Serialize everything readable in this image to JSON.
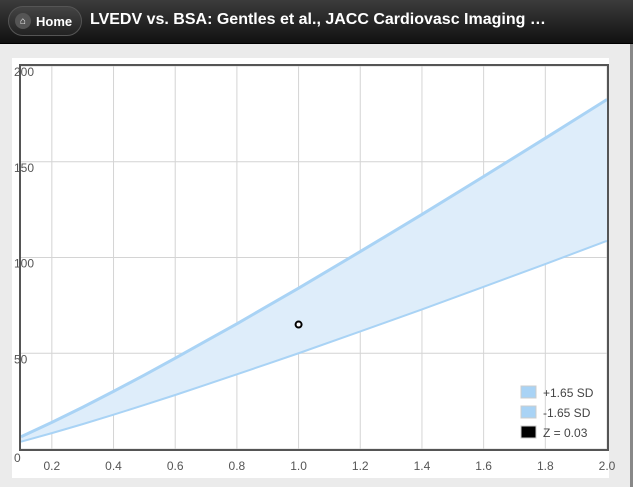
{
  "header": {
    "home_label": "Home",
    "title": "LVEDV vs. BSA: Gentles et al., JACC Cardiovasc Imaging …"
  },
  "chart_data": {
    "type": "area",
    "title": "LVEDV vs. BSA: Gentles et al., JACC Cardiovasc Imaging",
    "xlim": [
      0.1,
      2.0
    ],
    "ylim": [
      0,
      200
    ],
    "xticks": [
      "0.2",
      "0.4",
      "0.6",
      "0.8",
      "1.0",
      "1.2",
      "1.4",
      "1.6",
      "1.8",
      "2.0"
    ],
    "yticks": [
      "0",
      "50",
      "100",
      "150",
      "200"
    ],
    "grid": true,
    "legend_position": "bottom-right",
    "x": [
      0.1,
      0.2,
      0.3,
      0.4,
      0.5,
      0.6,
      0.7,
      0.8,
      0.9,
      1.0,
      1.2,
      1.4,
      1.6,
      1.8,
      2.0
    ],
    "series": [
      {
        "name": "+1.65 SD",
        "color": "#a9d3f5",
        "values": [
          6.4,
          13.9,
          21.8,
          30.1,
          38.6,
          47.4,
          56.4,
          65.4,
          74.7,
          84,
          103.1,
          122.5,
          142.3,
          162.3,
          182.5
        ]
      },
      {
        "name": "-1.65 SD",
        "color": "#a9d3f5",
        "values": [
          3.8,
          8.3,
          13,
          17.9,
          23,
          28.2,
          33.6,
          39,
          44.5,
          50,
          61.4,
          72.9,
          84.7,
          96.6,
          108.7
        ]
      }
    ],
    "point": {
      "name": "Z = 0.03",
      "color": "#000000",
      "x": 1.0,
      "y": 65
    }
  }
}
